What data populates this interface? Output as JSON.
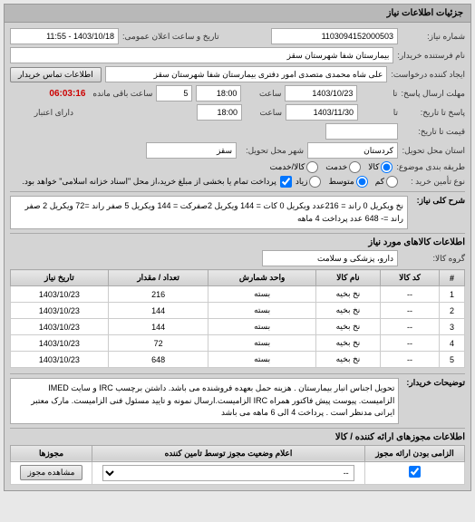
{
  "panel_title": "جزئیات اطلاعات نیاز",
  "fields": {
    "number_label": "شماره نیاز:",
    "number_value": "1103094152000503",
    "public_date_label": "تاریخ و ساعت اعلان عمومی:",
    "public_date_value": "1403/10/18 - 11:55",
    "buyer_label": "نام فرستنده خریدار:",
    "buyer_value": "بیمارستان شفا شهرستان سقز",
    "requester_label": "ایجاد کننده درخواست:",
    "requester_value": "علی شاه محمدی متصدی امور دفتری بیمارستان شفا شهرستان سقز",
    "contact_btn": "اطلاعات تماس خریدار",
    "deadline_label": "مهلت ارسال پاسخ:",
    "to_label": "تا",
    "deadline_date": "1403/10/23",
    "time_label": "ساعت",
    "deadline_time": "18:00",
    "days_num": "5",
    "days_remain": "ساعت باقی مانده",
    "timer": "06:03:16",
    "validity_label": "پاسخ تا تاریخ:",
    "validity_date": "1403/11/30",
    "validity_time": "18:00",
    "credit_label": "دارای اعتبار",
    "price_label": "قیمت تا تاریخ:",
    "province_label": "استان محل تحویل:",
    "province_value": "کردستان",
    "city_label": "شهر محل تحویل:",
    "city_value": "سقز",
    "lot_label": "طریقه بندی موضوع:",
    "lot_r1": "کالا",
    "lot_r2": "خدمت",
    "lot_r3": "کالا/خدمت",
    "supply_label": "نوع تأمین خرید :",
    "supply_r1": "کم",
    "supply_r2": "متوسط",
    "supply_r3": "زیاد",
    "payment_note": "پرداخت تمام یا بخشی از مبلغ خرید،از محل \"اسناد خزانه اسلامی\" خواهد بود."
  },
  "desc": {
    "label": "شرح کلی نیاز:",
    "text": "نخ ویکریل 0 راند = 216عدد ویکریل 0 کات = 144 ویکریل 2صفرکت = 144 ویکریل 5 صفر راند =72 ویکریل 2 صفر راند =- 648 عدد پرداخت 4 ماهه"
  },
  "goods_header": "اطلاعات کالاهای مورد نیاز",
  "group": {
    "label": "گروه کالا:",
    "value": "دارو، پزشکی و سلامت"
  },
  "table": {
    "headers": [
      "#",
      "کد کالا",
      "نام کالا",
      "واحد شمارش",
      "تعداد / مقدار",
      "تاریخ نیاز"
    ],
    "rows": [
      [
        "1",
        "--",
        "نخ بخیه",
        "بسته",
        "216",
        "1403/10/23"
      ],
      [
        "2",
        "--",
        "نخ بخیه",
        "بسته",
        "144",
        "1403/10/23"
      ],
      [
        "3",
        "--",
        "نخ بخیه",
        "بسته",
        "144",
        "1403/10/23"
      ],
      [
        "4",
        "--",
        "نخ بخیه",
        "بسته",
        "72",
        "1403/10/23"
      ],
      [
        "5",
        "--",
        "نخ بخیه",
        "بسته",
        "648",
        "1403/10/23"
      ]
    ]
  },
  "explain": {
    "label": "توضیحات خریدار:",
    "text": "تحویل اجناس انبار بیمارستان . هزینه حمل بعهده فروشنده می باشد. داشتن برچسب IRC و سایت IMED الزامیست. پیوست پیش فاکتور همراه IRC الزامیست.ارسال نمونه و تایید مسئول فنی الزامیست. مارک معتبر ایرانی مدنظر است . پرداخت 4 الی 6 ماهه می باشد"
  },
  "auth_header": "اطلاعات مجوزهای ارائه کننده / کالا",
  "auth_table": {
    "h1": "الزامی بودن ارائه مجوز",
    "h2": "اعلام وضعیت مجوز توسط تامین کننده",
    "h3": "مجوزها",
    "dash": "--",
    "view_btn": "مشاهده مجوز"
  }
}
